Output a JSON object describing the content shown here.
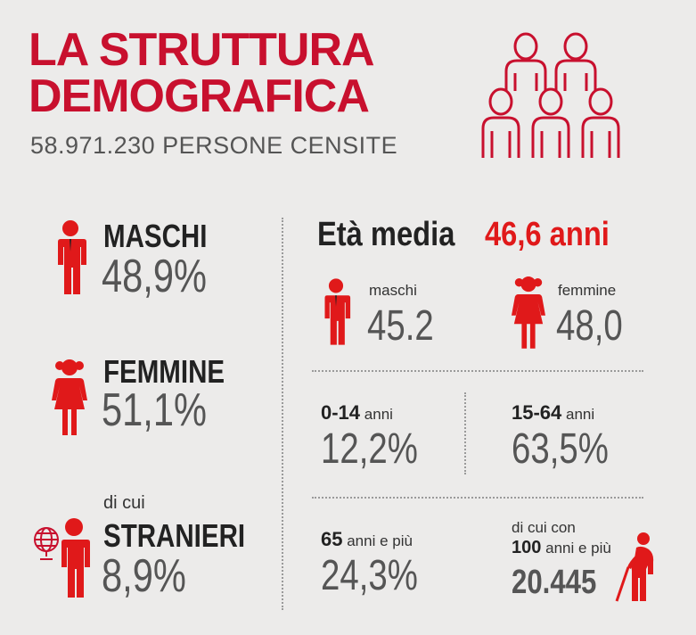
{
  "header": {
    "title_line1": "LA STRUTTURA",
    "title_line2": "DEMOGRAFICA",
    "subtitle": "58.971.230 PERSONE CENSITE"
  },
  "left": {
    "males_label": "MASCHI",
    "males_pct": "48,9%",
    "females_label": "FEMMINE",
    "females_pct": "51,1%",
    "foreigners_prefix": "di cui",
    "foreigners_label": "STRANIERI",
    "foreigners_pct": "8,9%"
  },
  "age": {
    "title": "Età media",
    "value": "46,6 anni",
    "males_label": "maschi",
    "males_value": "45.2",
    "females_label": "femmine",
    "females_value": "48,0"
  },
  "groups": {
    "g1_range": "0-14",
    "g1_unit": "anni",
    "g1_value": "12,2%",
    "g2_range": "15-64",
    "g2_unit": "anni",
    "g2_value": "63,5%",
    "g3_range": "65",
    "g3_unit": "anni e più",
    "g3_value": "24,3%",
    "g4_line1": "di cui con",
    "g4_range": "100",
    "g4_unit": "anni e più",
    "g4_value": "20.445"
  },
  "icons": {
    "people_group": "people-group-icon",
    "male": "male-icon",
    "female": "female-icon",
    "globe": "globe-icon",
    "elderly": "elderly-icon"
  },
  "colors": {
    "accent": "#c8102e",
    "text": "#222222",
    "value": "#555555"
  }
}
